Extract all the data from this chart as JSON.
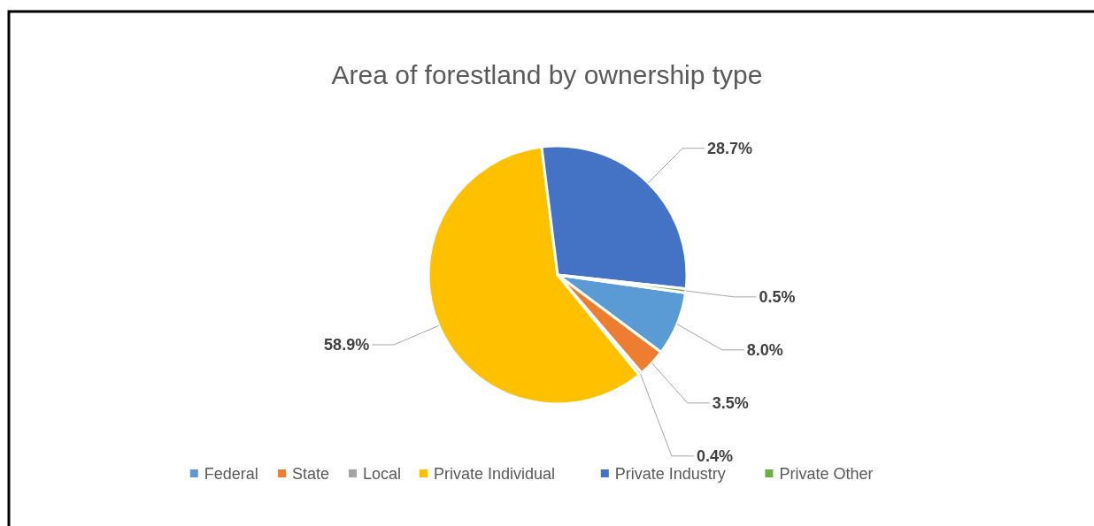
{
  "chart_data": {
    "type": "pie",
    "title": "Area of forestland by ownership type",
    "categories": [
      "Federal",
      "State",
      "Local",
      "Private Individual",
      "Private Industry",
      "Private Other"
    ],
    "values": [
      8.0,
      3.5,
      0.4,
      58.9,
      28.7,
      0.5
    ],
    "value_labels": [
      "8.0%",
      "3.5%",
      "0.4%",
      "58.9%",
      "28.7%",
      "0.5%"
    ],
    "colors": [
      "#5b9bd5",
      "#ed7d31",
      "#a5a5a5",
      "#ffc000",
      "#4472c4",
      "#70ad47"
    ],
    "legend": "bottom"
  }
}
